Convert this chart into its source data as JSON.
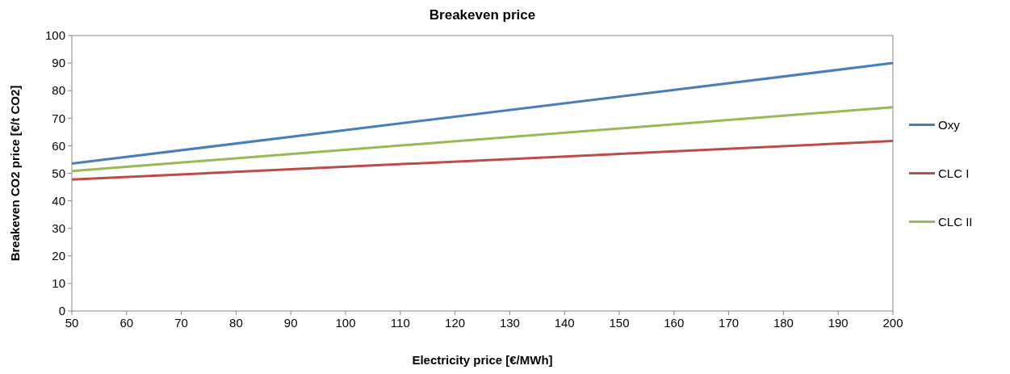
{
  "chart_data": {
    "type": "line",
    "title": "Breakeven price",
    "xlabel": "Electricity price [€/MWh]",
    "ylabel": "Breakeven CO2 price [€/t CO2]",
    "x": [
      50,
      200
    ],
    "series": [
      {
        "name": "Oxy",
        "color": "#4a7ebb",
        "values": [
          53.5,
          90
        ]
      },
      {
        "name": "CLC I",
        "color": "#be4b48",
        "values": [
          47.7,
          61.7
        ]
      },
      {
        "name": "CLC II",
        "color": "#98b954",
        "values": [
          50.8,
          74
        ]
      }
    ],
    "xlim": [
      50,
      200
    ],
    "xticks": [
      50,
      60,
      70,
      80,
      90,
      100,
      110,
      120,
      130,
      140,
      150,
      160,
      170,
      180,
      190,
      200
    ],
    "ylim": [
      0,
      100
    ],
    "yticks": [
      0,
      10,
      20,
      30,
      40,
      50,
      60,
      70,
      80,
      90,
      100
    ],
    "grid": false,
    "legend": "right",
    "marker": "none",
    "line_style": "solid"
  }
}
